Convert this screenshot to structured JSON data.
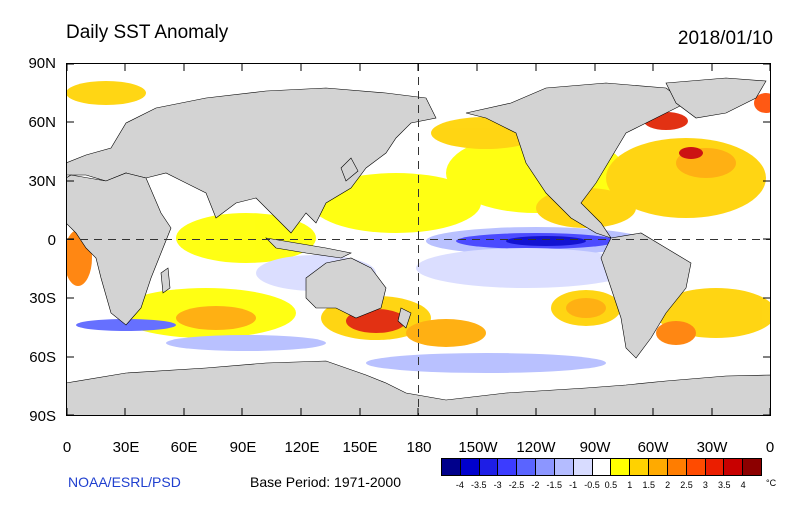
{
  "header": {
    "title": "Daily SST Anomaly",
    "date": "2018/01/10"
  },
  "axes": {
    "lat_labels": [
      "90N",
      "60N",
      "30N",
      "0",
      "30S",
      "60S",
      "90S"
    ],
    "lon_labels": [
      "0",
      "30E",
      "60E",
      "90E",
      "120E",
      "150E",
      "180",
      "150W",
      "120W",
      "90W",
      "60W",
      "30W",
      "0"
    ]
  },
  "footer": {
    "credit": "NOAA/ESRL/PSD",
    "base_period": "Base Period: 1971-2000"
  },
  "colorbar": {
    "ticks": [
      "-4",
      "-3.5",
      "-3",
      "-2.5",
      "-2",
      "-1.5",
      "-1",
      "-0.5",
      "0.5",
      "1",
      "1.5",
      "2",
      "2.5",
      "3",
      "3.5",
      "4"
    ],
    "unit": "°C",
    "colors": [
      "#00008b",
      "#0000cd",
      "#1e1ee6",
      "#3c3cff",
      "#5a64ff",
      "#8c96ff",
      "#b4bcff",
      "#d8dcff",
      "#ffffff",
      "#ffff00",
      "#ffd200",
      "#ffaa00",
      "#ff7d00",
      "#ff4b00",
      "#eb1e00",
      "#c80000",
      "#8c0000"
    ]
  },
  "map_colors": {
    "land": "#d3d3d3",
    "ocean": "#ffffff",
    "warm_weak": "#ffff00",
    "warm_mid": "#ffd200",
    "warm_strong": "#ff7d00",
    "hot": "#e02000",
    "cool_weak": "#b4bcff",
    "cool_mid": "#5a64ff",
    "cold": "#1e1ee6"
  }
}
